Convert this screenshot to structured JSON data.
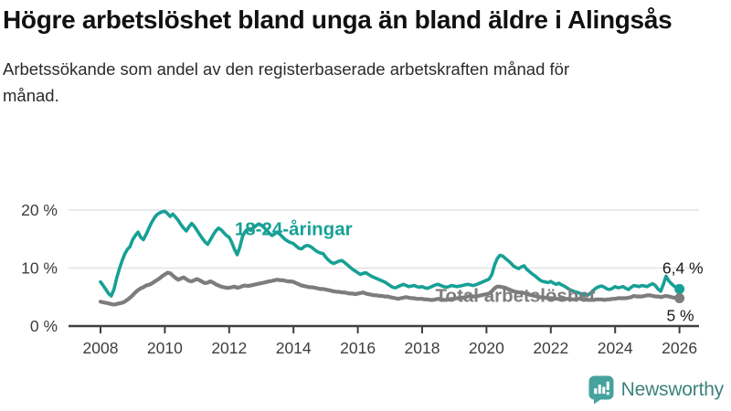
{
  "header": {
    "title": "Högre arbetslöshet bland unga än bland äldre i Alingsås",
    "subtitle": "Arbetssökande som andel av den registerbaserade arbetskraften månad för månad."
  },
  "footer": {
    "brand": "Newsworthy",
    "logo_icon": "bar-chart-speech-bubble-icon"
  },
  "colors": {
    "youth_line": "#17a095",
    "total_line": "#7d7d7d",
    "grid": "#e2e2e2",
    "axis": "#3f3f3f",
    "tick_text": "#3d3d3d",
    "end_label_text": "#1a1a1a",
    "logo_icon": "#45a29c",
    "logo_text": "#3c827e"
  },
  "chart_data": {
    "type": "line",
    "title": "Högre arbetslöshet bland unga än bland äldre i Alingsås",
    "subtitle": "Arbetssökande som andel av den registerbaserade arbetskraften månad för månad.",
    "unit": "%",
    "x_start_year": 2008,
    "x_step_months": 1,
    "x_end_year": 2026,
    "x_tick_labels": [
      "2008",
      "2010",
      "2012",
      "2014",
      "2016",
      "2018",
      "2020",
      "2022",
      "2024",
      "2026"
    ],
    "x_tick_years": [
      2008,
      2010,
      2012,
      2014,
      2016,
      2018,
      2020,
      2022,
      2024,
      2026
    ],
    "y_tick_labels": [
      "0 %",
      "10 %",
      "20 %"
    ],
    "y_tick_values": [
      0,
      10,
      20
    ],
    "ylim": [
      0,
      22
    ],
    "grid": "horizontal-only",
    "legend_position": "inline-labels",
    "series": [
      {
        "name": "18-24-åringar",
        "color": "#17a095",
        "end_label": "6,4 %",
        "label_x": 2014.0,
        "label_y": 16.8,
        "end_label_dx": 26,
        "end_label_dy": -17,
        "values": [
          7.6,
          7.0,
          6.3,
          5.6,
          5.2,
          6.3,
          8.2,
          9.8,
          11.2,
          12.4,
          13.2,
          13.7,
          14.9,
          15.6,
          16.2,
          15.3,
          14.9,
          15.8,
          16.8,
          17.8,
          18.6,
          19.2,
          19.5,
          19.7,
          19.8,
          19.4,
          18.9,
          19.3,
          18.8,
          18.2,
          17.5,
          16.9,
          16.4,
          17.1,
          17.7,
          17.2,
          16.5,
          15.8,
          15.1,
          14.5,
          14.1,
          14.9,
          15.7,
          16.4,
          16.9,
          16.6,
          16.1,
          15.6,
          15.3,
          14.4,
          13.2,
          12.3,
          13.6,
          15.5,
          16.3,
          16.8,
          16.5,
          16.9,
          17.3,
          17.6,
          17.4,
          17.0,
          16.5,
          16.0,
          15.6,
          15.9,
          16.2,
          15.8,
          15.3,
          14.9,
          14.6,
          14.4,
          14.2,
          13.8,
          13.4,
          13.3,
          13.7,
          13.9,
          13.8,
          13.5,
          13.1,
          12.8,
          12.6,
          12.5,
          11.9,
          11.4,
          11.0,
          10.8,
          11.0,
          11.2,
          11.3,
          11.0,
          10.6,
          10.2,
          9.8,
          9.5,
          9.2,
          8.9,
          9.1,
          9.2,
          8.9,
          8.6,
          8.4,
          8.2,
          8.0,
          7.8,
          7.6,
          7.3,
          7.0,
          6.7,
          6.6,
          6.8,
          7.0,
          7.2,
          7.0,
          6.8,
          6.9,
          7.0,
          6.8,
          6.7,
          6.8,
          6.6,
          6.5,
          6.7,
          6.9,
          7.1,
          7.2,
          7.0,
          6.8,
          6.7,
          6.8,
          7.0,
          6.9,
          6.8,
          6.9,
          7.0,
          7.1,
          7.2,
          7.1,
          7.0,
          7.1,
          7.3,
          7.5,
          7.7,
          7.9,
          8.1,
          8.9,
          10.5,
          11.6,
          12.2,
          12.1,
          11.7,
          11.3,
          10.9,
          10.4,
          10.1,
          9.9,
          10.2,
          10.4,
          9.8,
          9.4,
          9.0,
          8.7,
          8.3,
          7.9,
          7.7,
          7.6,
          7.5,
          7.7,
          7.4,
          7.2,
          7.4,
          7.1,
          6.9,
          6.6,
          6.3,
          6.1,
          5.9,
          5.8,
          5.6,
          5.5,
          5.4,
          5.4,
          5.8,
          6.2,
          6.6,
          6.8,
          6.9,
          6.7,
          6.4,
          6.3,
          6.5,
          6.8,
          6.6,
          6.7,
          6.8,
          6.5,
          6.3,
          6.7,
          7.0,
          6.9,
          6.8,
          7.0,
          6.9,
          6.8,
          7.1,
          7.3,
          7.0,
          6.4,
          6.0,
          7.2,
          8.6,
          7.8,
          7.3,
          6.9,
          6.6,
          6.4
        ]
      },
      {
        "name": "Total arbetslöshet",
        "color": "#7d7d7d",
        "end_label": "5 %",
        "label_x": 2020.9,
        "label_y": 5.3,
        "end_label_dx": 16,
        "end_label_dy": 25,
        "values": [
          4.2,
          4.1,
          4.0,
          3.9,
          3.8,
          3.7,
          3.8,
          3.9,
          4.0,
          4.2,
          4.5,
          4.9,
          5.3,
          5.8,
          6.2,
          6.5,
          6.7,
          7.0,
          7.1,
          7.3,
          7.6,
          7.9,
          8.2,
          8.6,
          8.9,
          9.2,
          9.1,
          8.7,
          8.3,
          8.0,
          8.2,
          8.4,
          8.1,
          7.8,
          7.7,
          7.9,
          8.1,
          7.9,
          7.6,
          7.4,
          7.5,
          7.7,
          7.5,
          7.2,
          7.0,
          6.8,
          6.7,
          6.6,
          6.6,
          6.7,
          6.8,
          6.6,
          6.7,
          6.9,
          7.0,
          6.9,
          7.0,
          7.1,
          7.2,
          7.3,
          7.4,
          7.5,
          7.6,
          7.7,
          7.8,
          7.9,
          8.0,
          7.9,
          7.9,
          7.8,
          7.7,
          7.7,
          7.6,
          7.4,
          7.2,
          7.0,
          6.9,
          6.8,
          6.7,
          6.7,
          6.6,
          6.5,
          6.4,
          6.4,
          6.3,
          6.2,
          6.1,
          6.0,
          5.9,
          5.9,
          5.8,
          5.8,
          5.7,
          5.6,
          5.6,
          5.5,
          5.6,
          5.7,
          5.8,
          5.6,
          5.5,
          5.4,
          5.3,
          5.3,
          5.2,
          5.2,
          5.1,
          5.1,
          5.0,
          4.9,
          4.8,
          4.7,
          4.8,
          4.9,
          5.0,
          4.9,
          4.8,
          4.8,
          4.7,
          4.7,
          4.7,
          4.6,
          4.6,
          4.5,
          4.5,
          4.6,
          4.7,
          4.6,
          4.5,
          4.5,
          4.6,
          4.7,
          4.7,
          4.8,
          4.8,
          4.9,
          5.0,
          5.1,
          5.2,
          5.1,
          5.1,
          5.2,
          5.3,
          5.4,
          5.5,
          5.6,
          6.0,
          6.5,
          6.8,
          6.8,
          6.7,
          6.6,
          6.4,
          6.2,
          6.0,
          5.9,
          5.8,
          5.8,
          5.7,
          5.6,
          5.4,
          5.3,
          5.2,
          5.1,
          5.0,
          4.9,
          4.9,
          4.8,
          4.8,
          4.8,
          4.7,
          4.7,
          4.6,
          4.6,
          4.7,
          4.7,
          4.6,
          4.6,
          4.7,
          4.7,
          4.6,
          4.6,
          4.5,
          4.5,
          4.5,
          4.6,
          4.6,
          4.6,
          4.5,
          4.6,
          4.6,
          4.7,
          4.7,
          4.8,
          4.8,
          4.8,
          4.8,
          4.9,
          5.0,
          5.2,
          5.1,
          5.1,
          5.1,
          5.2,
          5.3,
          5.3,
          5.2,
          5.1,
          5.1,
          5.0,
          5.1,
          5.2,
          5.1,
          5.0,
          4.9,
          4.8,
          4.8
        ]
      }
    ]
  }
}
